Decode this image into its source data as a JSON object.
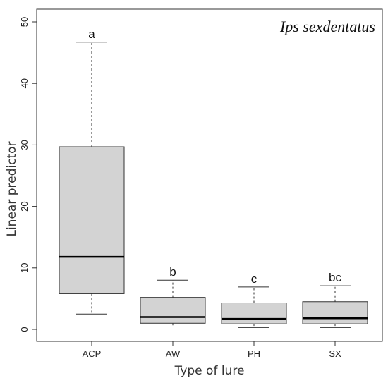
{
  "chart_data": {
    "type": "box",
    "title": "Ips sexdentatus",
    "xlabel": "Type of lure",
    "ylabel": "Linear predictor",
    "ylim": [
      0,
      50
    ],
    "yticks": [
      0,
      10,
      20,
      30,
      40,
      50
    ],
    "categories": [
      "ACP",
      "AW",
      "PH",
      "SX"
    ],
    "boxes": [
      {
        "category": "ACP",
        "min": 2.5,
        "q1": 5.8,
        "median": 11.8,
        "q3": 29.7,
        "max": 46.7,
        "letter": "a"
      },
      {
        "category": "AW",
        "min": 0.4,
        "q1": 1.0,
        "median": 2.0,
        "q3": 5.2,
        "max": 8.0,
        "letter": "b"
      },
      {
        "category": "PH",
        "min": 0.3,
        "q1": 0.9,
        "median": 1.7,
        "q3": 4.3,
        "max": 6.9,
        "letter": "c"
      },
      {
        "category": "SX",
        "min": 0.3,
        "q1": 0.9,
        "median": 1.8,
        "q3": 4.5,
        "max": 7.1,
        "letter": "bc"
      }
    ],
    "box_fill": "#d3d3d3",
    "grid": false
  }
}
